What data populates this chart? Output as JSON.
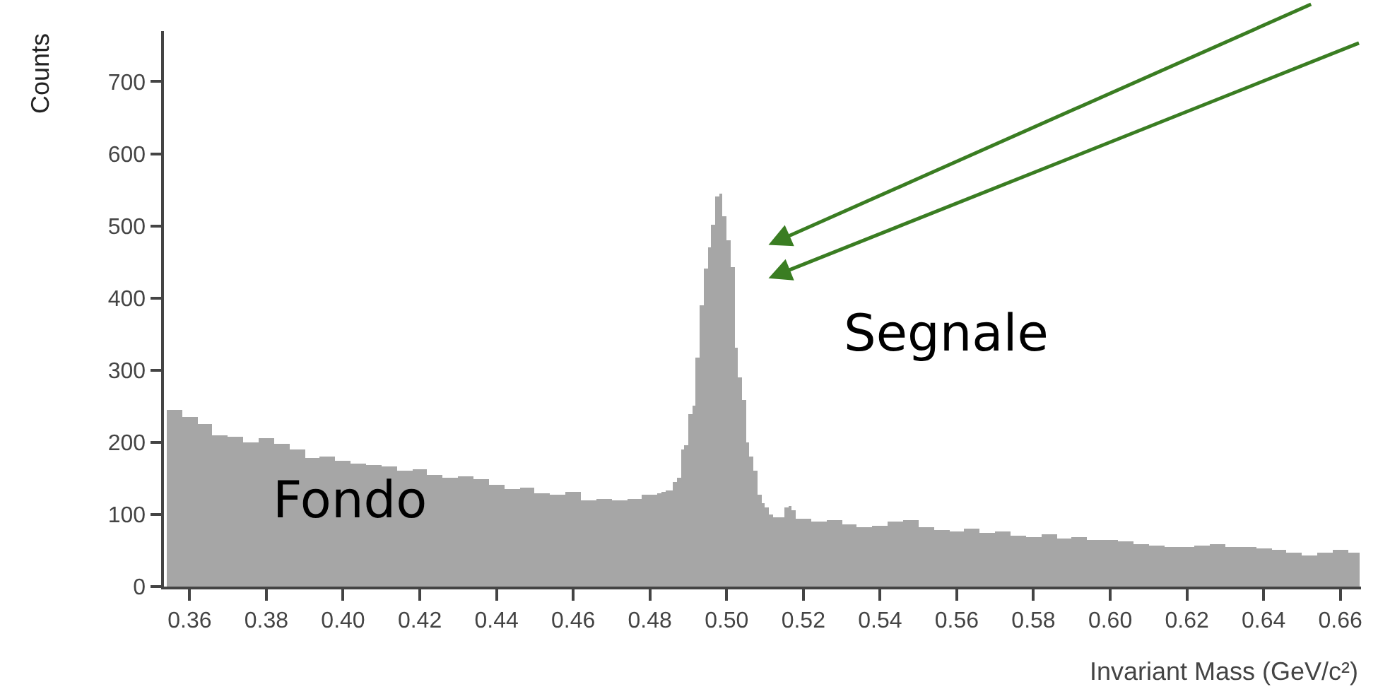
{
  "chart_data": {
    "type": "histogram",
    "xlabel": "Invariant Mass (GeV/c²)",
    "ylabel": "Counts",
    "annotations": [
      "Fondo",
      "Segnale"
    ],
    "color": "#a6a6a6",
    "bins": [
      0.354,
      0.358,
      0.362,
      0.366,
      0.37,
      0.374,
      0.378,
      0.382,
      0.386,
      0.39,
      0.394,
      0.398,
      0.402,
      0.406,
      0.41,
      0.414,
      0.418,
      0.422,
      0.426,
      0.43,
      0.434,
      0.438,
      0.442,
      0.446,
      0.45,
      0.454,
      0.458,
      0.462,
      0.466,
      0.47,
      0.474,
      0.478,
      0.482,
      0.483,
      0.484,
      0.485,
      0.486,
      0.487,
      0.488,
      0.489,
      0.49,
      0.491,
      0.492,
      0.493,
      0.494,
      0.495,
      0.496,
      0.497,
      0.498,
      0.499,
      0.5,
      0.501,
      0.502,
      0.503,
      0.504,
      0.505,
      0.506,
      0.507,
      0.508,
      0.509,
      0.51,
      0.511,
      0.512,
      0.513,
      0.514,
      0.515,
      0.516,
      0.517,
      0.518,
      0.522,
      0.526,
      0.53,
      0.534,
      0.538,
      0.542,
      0.546,
      0.55,
      0.554,
      0.558,
      0.562,
      0.566,
      0.57,
      0.574,
      0.578,
      0.582,
      0.586,
      0.59,
      0.594,
      0.598,
      0.602,
      0.606,
      0.61,
      0.614,
      0.618,
      0.622,
      0.626,
      0.63,
      0.634,
      0.638,
      0.642,
      0.646,
      0.65,
      0.654,
      0.658,
      0.662,
      0.665
    ],
    "values": [
      245,
      236,
      225,
      210,
      208,
      200,
      205,
      198,
      190,
      178,
      180,
      175,
      170,
      168,
      166,
      160,
      162,
      155,
      150,
      152,
      148,
      142,
      136,
      138,
      130,
      128,
      132,
      120,
      122,
      120,
      122,
      128,
      130,
      132,
      134,
      134,
      145,
      151,
      190,
      195,
      240,
      250,
      318,
      390,
      440,
      470,
      502,
      540,
      545,
      514,
      480,
      442,
      331,
      290,
      259,
      200,
      180,
      161,
      128,
      115,
      109,
      100,
      96,
      96,
      96,
      110,
      112,
      105,
      95,
      90,
      92,
      86,
      82,
      85,
      90,
      92,
      82,
      78,
      76,
      80,
      74,
      76,
      70,
      68,
      72,
      66,
      68,
      64,
      64,
      62,
      58,
      56,
      55,
      54,
      56,
      58,
      54,
      54,
      52,
      50,
      48,
      44,
      48,
      50,
      48
    ],
    "xlim": [
      0.3533,
      0.6654
    ],
    "ylim": [
      0,
      770
    ],
    "xticks": [
      {
        "value": 0.36,
        "label": "0.36"
      },
      {
        "value": 0.38,
        "label": "0.38"
      },
      {
        "value": 0.4,
        "label": "0.40"
      },
      {
        "value": 0.42,
        "label": "0.42"
      },
      {
        "value": 0.44,
        "label": "0.44"
      },
      {
        "value": 0.46,
        "label": "0.46"
      },
      {
        "value": 0.48,
        "label": "0.48"
      },
      {
        "value": 0.5,
        "label": "0.50"
      },
      {
        "value": 0.52,
        "label": "0.52"
      },
      {
        "value": 0.54,
        "label": "0.54"
      },
      {
        "value": 0.56,
        "label": "0.56"
      },
      {
        "value": 0.58,
        "label": "0.58"
      },
      {
        "value": 0.6,
        "label": "0.60"
      },
      {
        "value": 0.62,
        "label": "0.62"
      },
      {
        "value": 0.64,
        "label": "0.64"
      },
      {
        "value": 0.66,
        "label": "0.66"
      }
    ],
    "yticks": [
      0,
      100,
      200,
      300,
      400,
      500,
      600,
      700
    ]
  }
}
